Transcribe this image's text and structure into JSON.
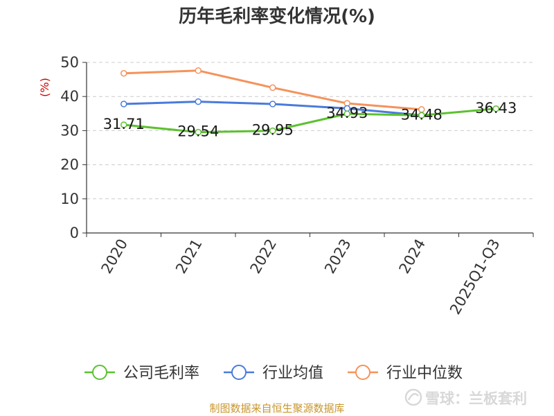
{
  "chart_data": {
    "type": "line",
    "title": "历年毛利率变化情况(%)",
    "ylabel": "(%)",
    "xlabel": "",
    "categories": [
      "2020",
      "2021",
      "2022",
      "2023",
      "2024",
      "2025Q1-Q3"
    ],
    "ylim": [
      0,
      50
    ],
    "yticks": [
      "0",
      "10",
      "20",
      "30",
      "40",
      "50"
    ],
    "grid": true,
    "legend_position": "bottom",
    "series": [
      {
        "name": "公司毛利率",
        "color": "#5cc130",
        "values": [
          31.71,
          29.54,
          29.95,
          34.93,
          34.48,
          36.43
        ],
        "labels": [
          "31.71",
          "29.54",
          "29.95",
          "34.93",
          "34.48",
          "36.43"
        ]
      },
      {
        "name": "行业均值",
        "color": "#4a7bdb",
        "values": [
          37.8,
          38.5,
          37.8,
          36.5,
          34.5,
          null
        ]
      },
      {
        "name": "行业中位数",
        "color": "#f5925a",
        "values": [
          46.8,
          47.6,
          42.6,
          38.0,
          36.2,
          null
        ]
      }
    ]
  },
  "footer": "制图数据来自恒生聚源数据库",
  "watermark": "雪球：兰板套利"
}
